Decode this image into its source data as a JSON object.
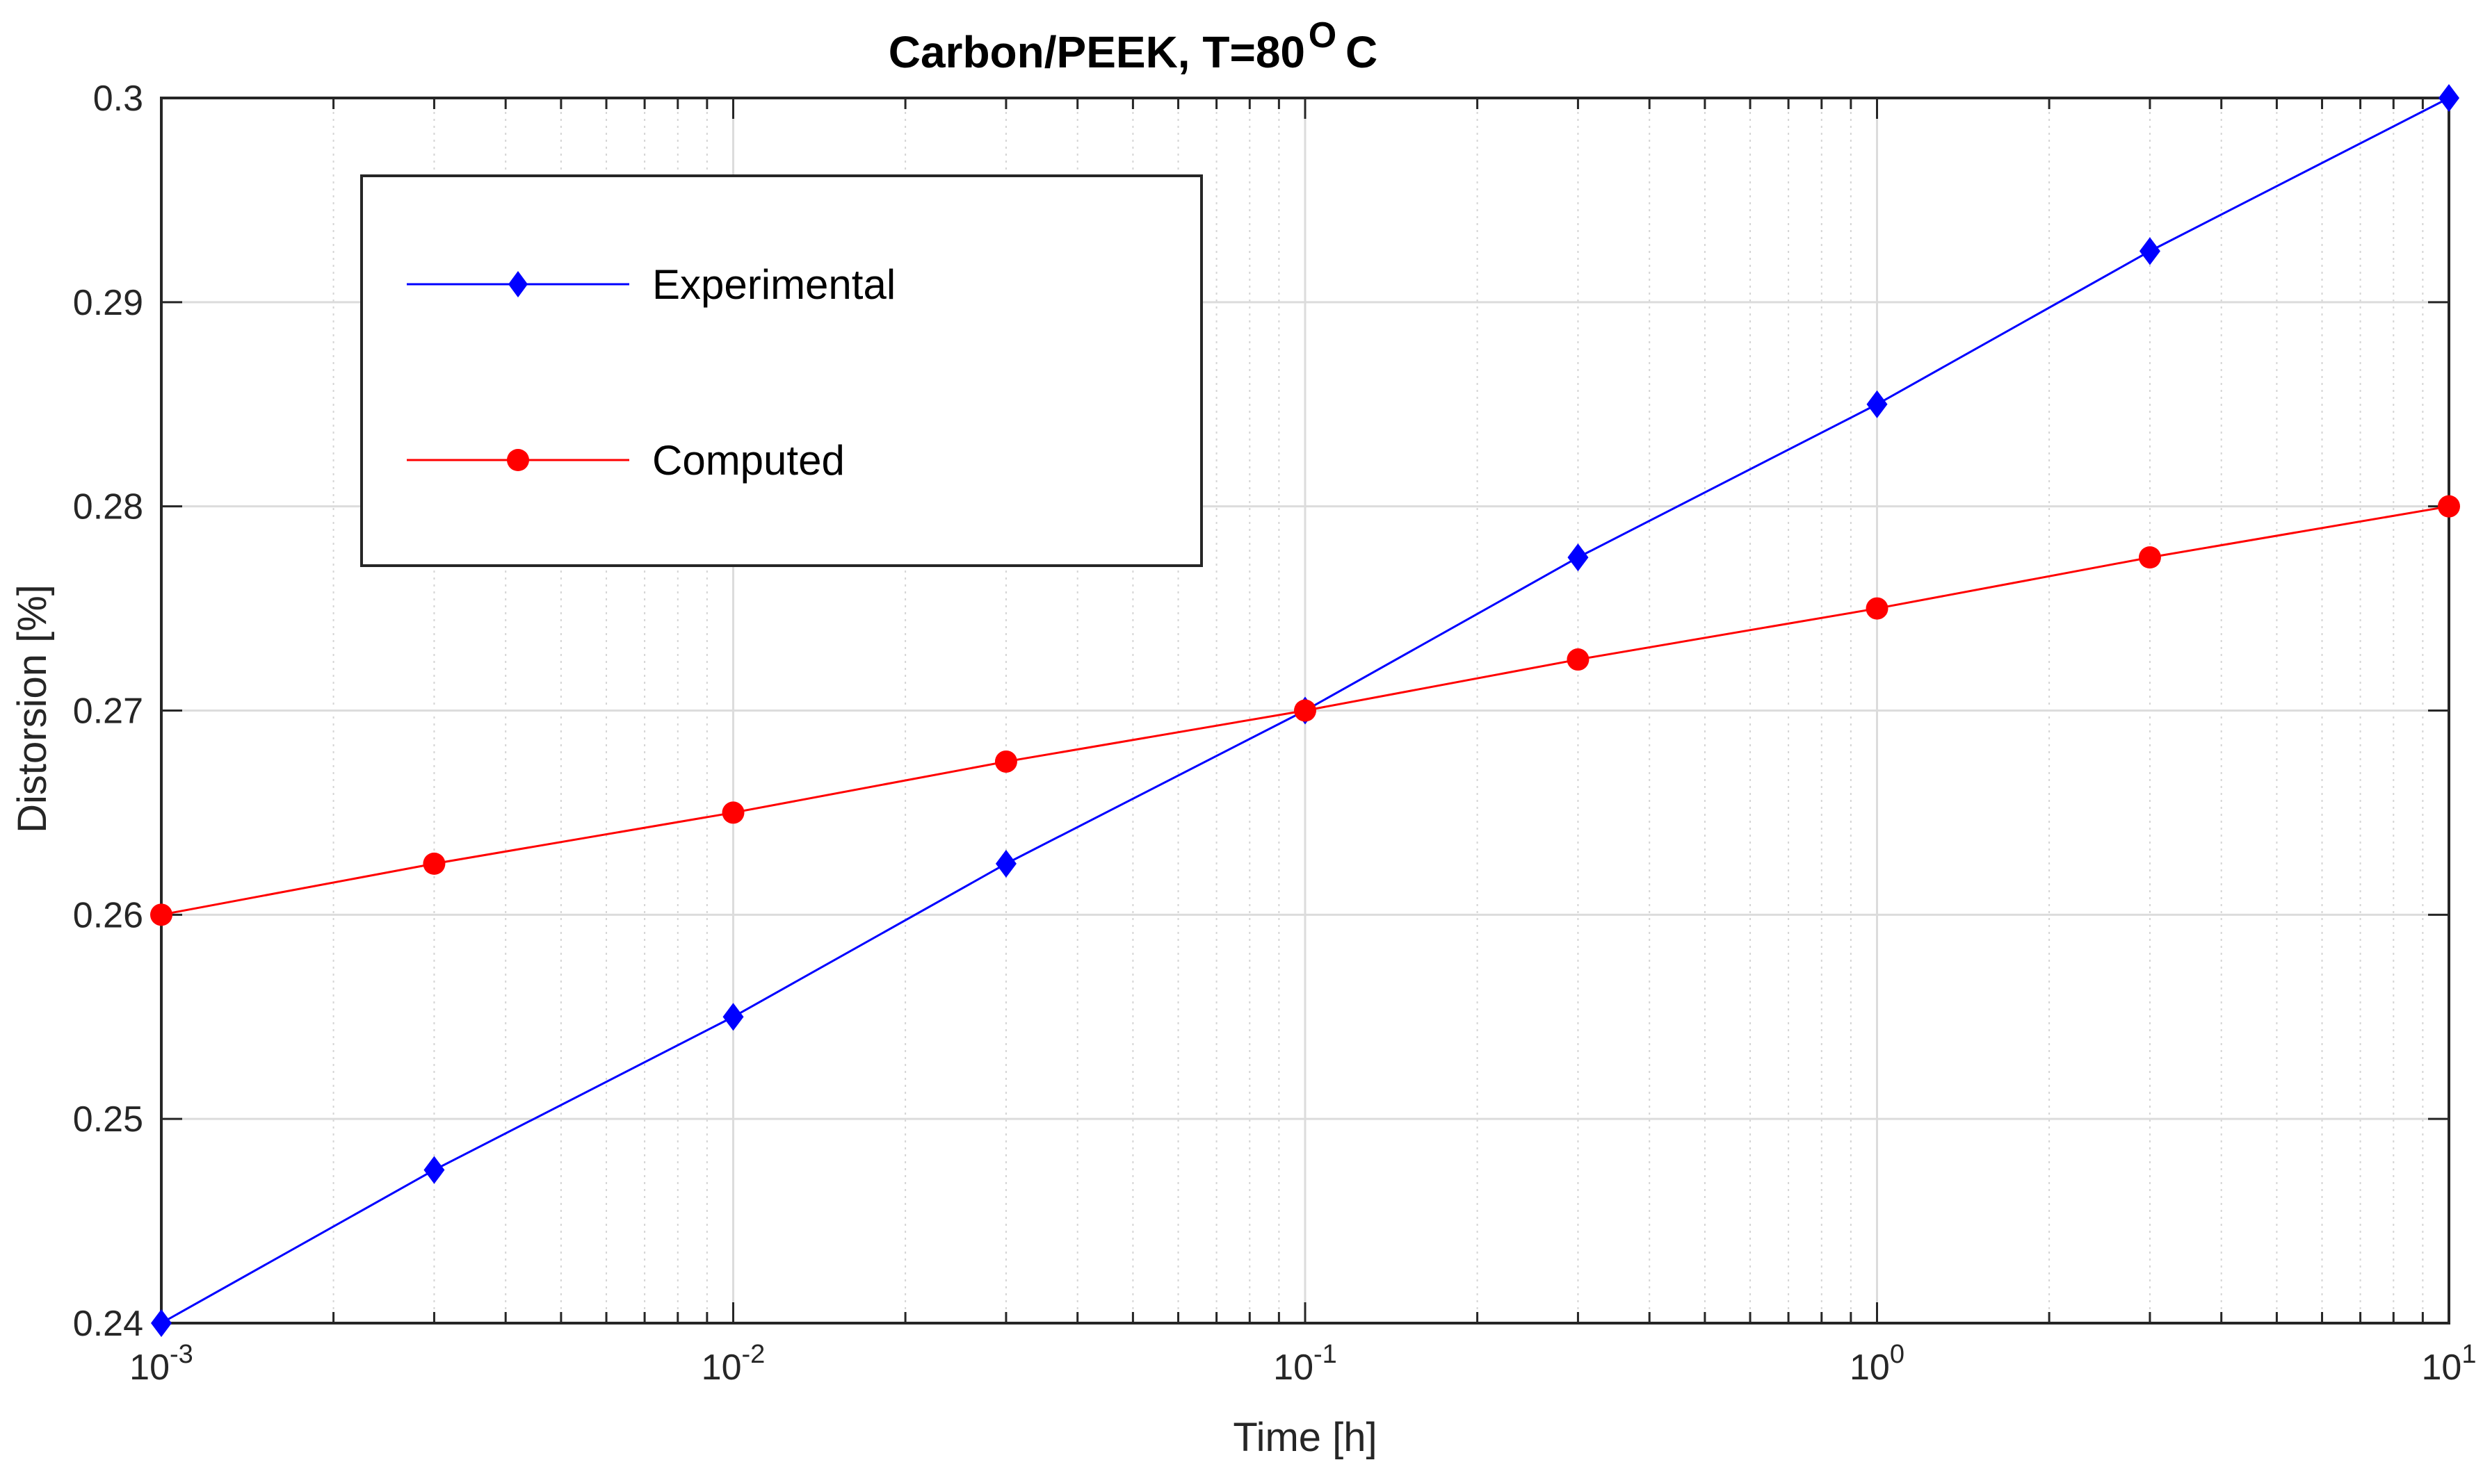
{
  "chart_data": {
    "type": "line",
    "title": "Carbon/PEEK, T=80",
    "title_superscript": "O",
    "title_suffix": "C",
    "xlabel": "Time [h]",
    "ylabel": "Distorsion [%]",
    "xscale": "log",
    "xlim": [
      0.001,
      10
    ],
    "ylim": [
      0.24,
      0.3
    ],
    "grid": true,
    "minor_grid": true,
    "legend_position": "top-left",
    "x_ticks": [
      {
        "value": 0.001,
        "base": "10",
        "exp": "-3"
      },
      {
        "value": 0.01,
        "base": "10",
        "exp": "-2"
      },
      {
        "value": 0.1,
        "base": "10",
        "exp": "-1"
      },
      {
        "value": 1,
        "base": "10",
        "exp": "0"
      },
      {
        "value": 10,
        "base": "10",
        "exp": "1"
      }
    ],
    "y_ticks": [
      {
        "value": 0.24,
        "label": "0.24"
      },
      {
        "value": 0.25,
        "label": "0.25"
      },
      {
        "value": 0.26,
        "label": "0.26"
      },
      {
        "value": 0.27,
        "label": "0.27"
      },
      {
        "value": 0.28,
        "label": "0.28"
      },
      {
        "value": 0.29,
        "label": "0.29"
      },
      {
        "value": 0.3,
        "label": "0.3"
      }
    ],
    "series": [
      {
        "name": "Experimental",
        "color": "#0000ff",
        "marker": "diamond",
        "x": [
          0.001,
          0.003,
          0.01,
          0.03,
          0.1,
          0.3,
          1,
          3,
          10
        ],
        "y": [
          0.24,
          0.2475,
          0.255,
          0.2625,
          0.27,
          0.2775,
          0.285,
          0.2925,
          0.3
        ]
      },
      {
        "name": "Computed",
        "color": "#ff0000",
        "marker": "circle",
        "x": [
          0.001,
          0.003,
          0.01,
          0.03,
          0.1,
          0.3,
          1,
          3,
          10
        ],
        "y": [
          0.26,
          0.2625,
          0.265,
          0.2675,
          0.27,
          0.2725,
          0.275,
          0.2775,
          0.28
        ]
      }
    ]
  }
}
